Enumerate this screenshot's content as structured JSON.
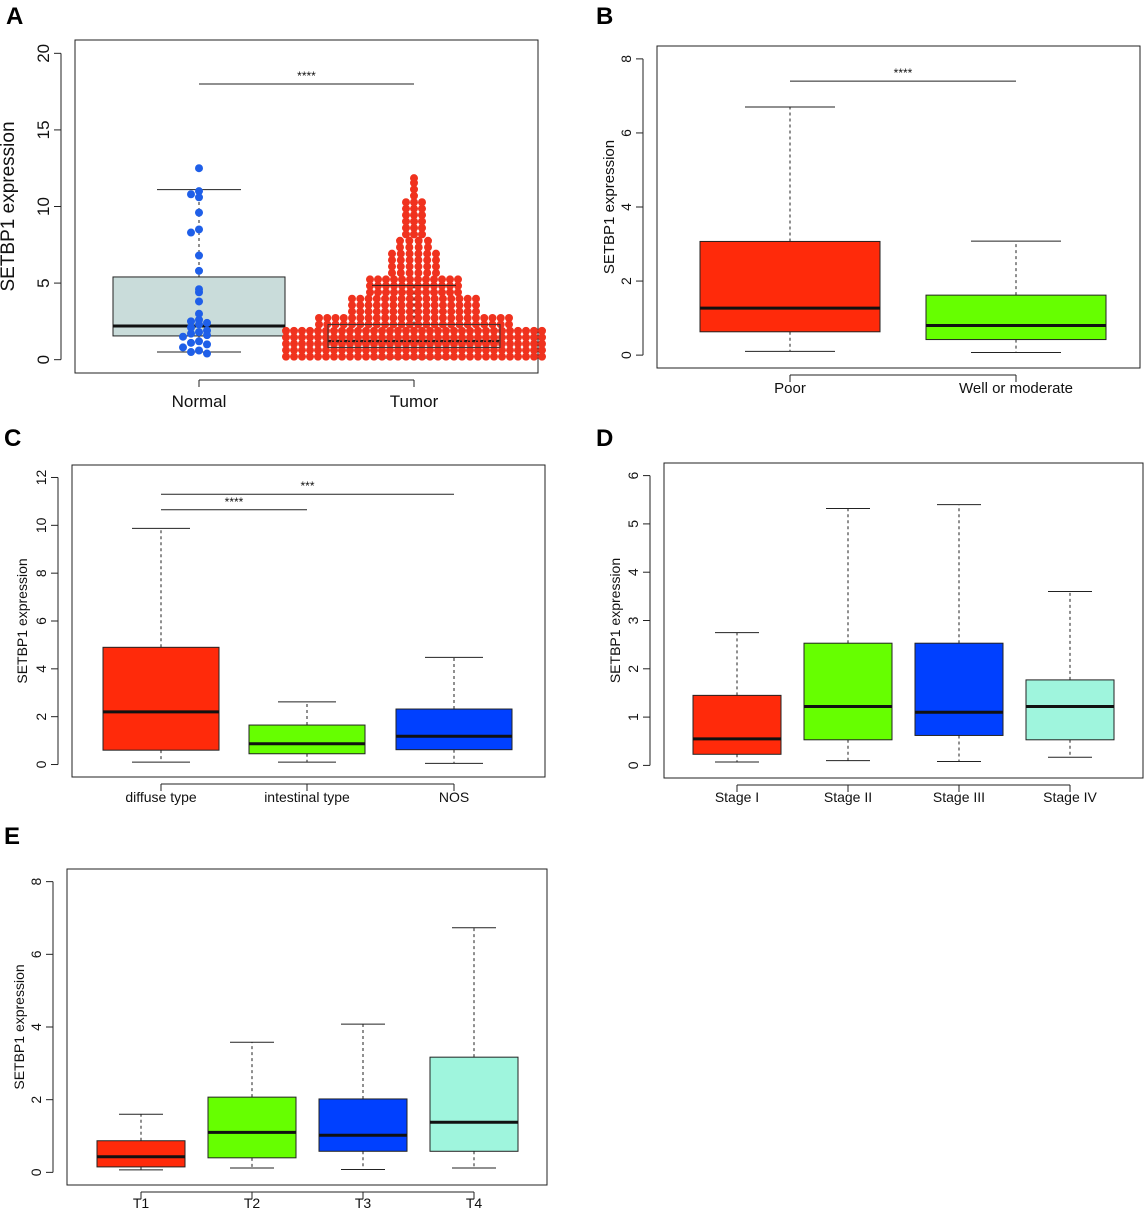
{
  "chart_data": [
    {
      "panel": "A",
      "type": "box",
      "ylabel": "SETBP1 expression",
      "ylim": [
        0,
        20
      ],
      "yticks": [
        "0",
        "5",
        "10",
        "15",
        "20"
      ],
      "groups": [
        {
          "name": "Normal",
          "color": "#c9dcda",
          "min": 0.5,
          "q1": 1.55,
          "median": 2.2,
          "q3": 5.4,
          "max": 11.1,
          "point_color": "#1f5fe8"
        },
        {
          "name": "Tumor",
          "color": "#ffffff",
          "min": 0.1,
          "q1": 0.8,
          "median": 1.2,
          "q3": 2.3,
          "max": 4.85,
          "point_color": "#f0321e"
        }
      ],
      "comparisons": [
        {
          "from": "Normal",
          "to": "Tumor",
          "label": "****",
          "y": 18
        }
      ],
      "normal_points": [
        12.5,
        11,
        10.8,
        10.6,
        9.6,
        8.5,
        8.3,
        6.8,
        5.8,
        4.6,
        4.4,
        3.8,
        3,
        2.6,
        2.5,
        2.4,
        2.3,
        2.1,
        1.9,
        1.8,
        1.7,
        1.6,
        1.5,
        1.2,
        1.1,
        1,
        0.8,
        0.6,
        0.5,
        0.4
      ]
    },
    {
      "panel": "B",
      "type": "box",
      "ylabel": "SETBP1 expression",
      "ylim": [
        0,
        8
      ],
      "yticks": [
        "0",
        "2",
        "4",
        "6",
        "8"
      ],
      "groups": [
        {
          "name": "Poor",
          "color": "#ff2a0a",
          "min": 0.1,
          "q1": 0.63,
          "median": 1.27,
          "q3": 3.07,
          "max": 6.7
        },
        {
          "name": "Well or moderate",
          "color": "#66ff00",
          "min": 0.07,
          "q1": 0.42,
          "median": 0.8,
          "q3": 1.62,
          "max": 3.08
        }
      ],
      "comparisons": [
        {
          "from": "Poor",
          "to": "Well or moderate",
          "label": "****",
          "y": 7.4
        }
      ]
    },
    {
      "panel": "C",
      "type": "box",
      "ylabel": "SETBP1 expression",
      "ylim": [
        0,
        12
      ],
      "yticks": [
        "0",
        "2",
        "4",
        "6",
        "8",
        "10",
        "12"
      ],
      "groups": [
        {
          "name": "diffuse type",
          "color": "#ff2a0a",
          "min": 0.1,
          "q1": 0.6,
          "median": 2.2,
          "q3": 4.9,
          "max": 9.87
        },
        {
          "name": "intestinal type",
          "color": "#66ff00",
          "min": 0.1,
          "q1": 0.45,
          "median": 0.87,
          "q3": 1.65,
          "max": 2.62
        },
        {
          "name": "NOS",
          "color": "#0040ff",
          "min": 0.05,
          "q1": 0.62,
          "median": 1.18,
          "q3": 2.32,
          "max": 4.48
        }
      ],
      "comparisons": [
        {
          "from": "diffuse type",
          "to": "NOS",
          "label": "***",
          "y": 11.3
        },
        {
          "from": "diffuse type",
          "to": "intestinal type",
          "label": "****",
          "y": 10.65
        }
      ]
    },
    {
      "panel": "D",
      "type": "box",
      "ylabel": "SETBP1 expression",
      "ylim": [
        0,
        6
      ],
      "yticks": [
        "0",
        "1",
        "2",
        "3",
        "4",
        "5",
        "6"
      ],
      "groups": [
        {
          "name": "Stage I",
          "color": "#ff2a0a",
          "min": 0.07,
          "q1": 0.23,
          "median": 0.55,
          "q3": 1.45,
          "max": 2.75
        },
        {
          "name": "Stage II",
          "color": "#66ff00",
          "min": 0.1,
          "q1": 0.53,
          "median": 1.22,
          "q3": 2.53,
          "max": 5.32
        },
        {
          "name": "Stage III",
          "color": "#0040ff",
          "min": 0.08,
          "q1": 0.62,
          "median": 1.1,
          "q3": 2.53,
          "max": 5.4
        },
        {
          "name": "Stage IV",
          "color": "#9ff5dd",
          "min": 0.17,
          "q1": 0.53,
          "median": 1.22,
          "q3": 1.77,
          "max": 3.6
        }
      ],
      "comparisons": []
    },
    {
      "panel": "E",
      "type": "box",
      "ylabel": "SETBP1 expression",
      "ylim": [
        0,
        8
      ],
      "yticks": [
        "0",
        "2",
        "4",
        "6",
        "8"
      ],
      "groups": [
        {
          "name": "T1",
          "color": "#ff2a0a",
          "min": 0.07,
          "q1": 0.15,
          "median": 0.43,
          "q3": 0.87,
          "max": 1.6
        },
        {
          "name": "T2",
          "color": "#66ff00",
          "min": 0.12,
          "q1": 0.4,
          "median": 1.1,
          "q3": 2.07,
          "max": 3.58
        },
        {
          "name": "T3",
          "color": "#0040ff",
          "min": 0.08,
          "q1": 0.58,
          "median": 1.02,
          "q3": 2.02,
          "max": 4.08
        },
        {
          "name": "T4",
          "color": "#9ff5dd",
          "min": 0.12,
          "q1": 0.58,
          "median": 1.38,
          "q3": 3.17,
          "max": 6.73
        }
      ],
      "comparisons": []
    }
  ]
}
